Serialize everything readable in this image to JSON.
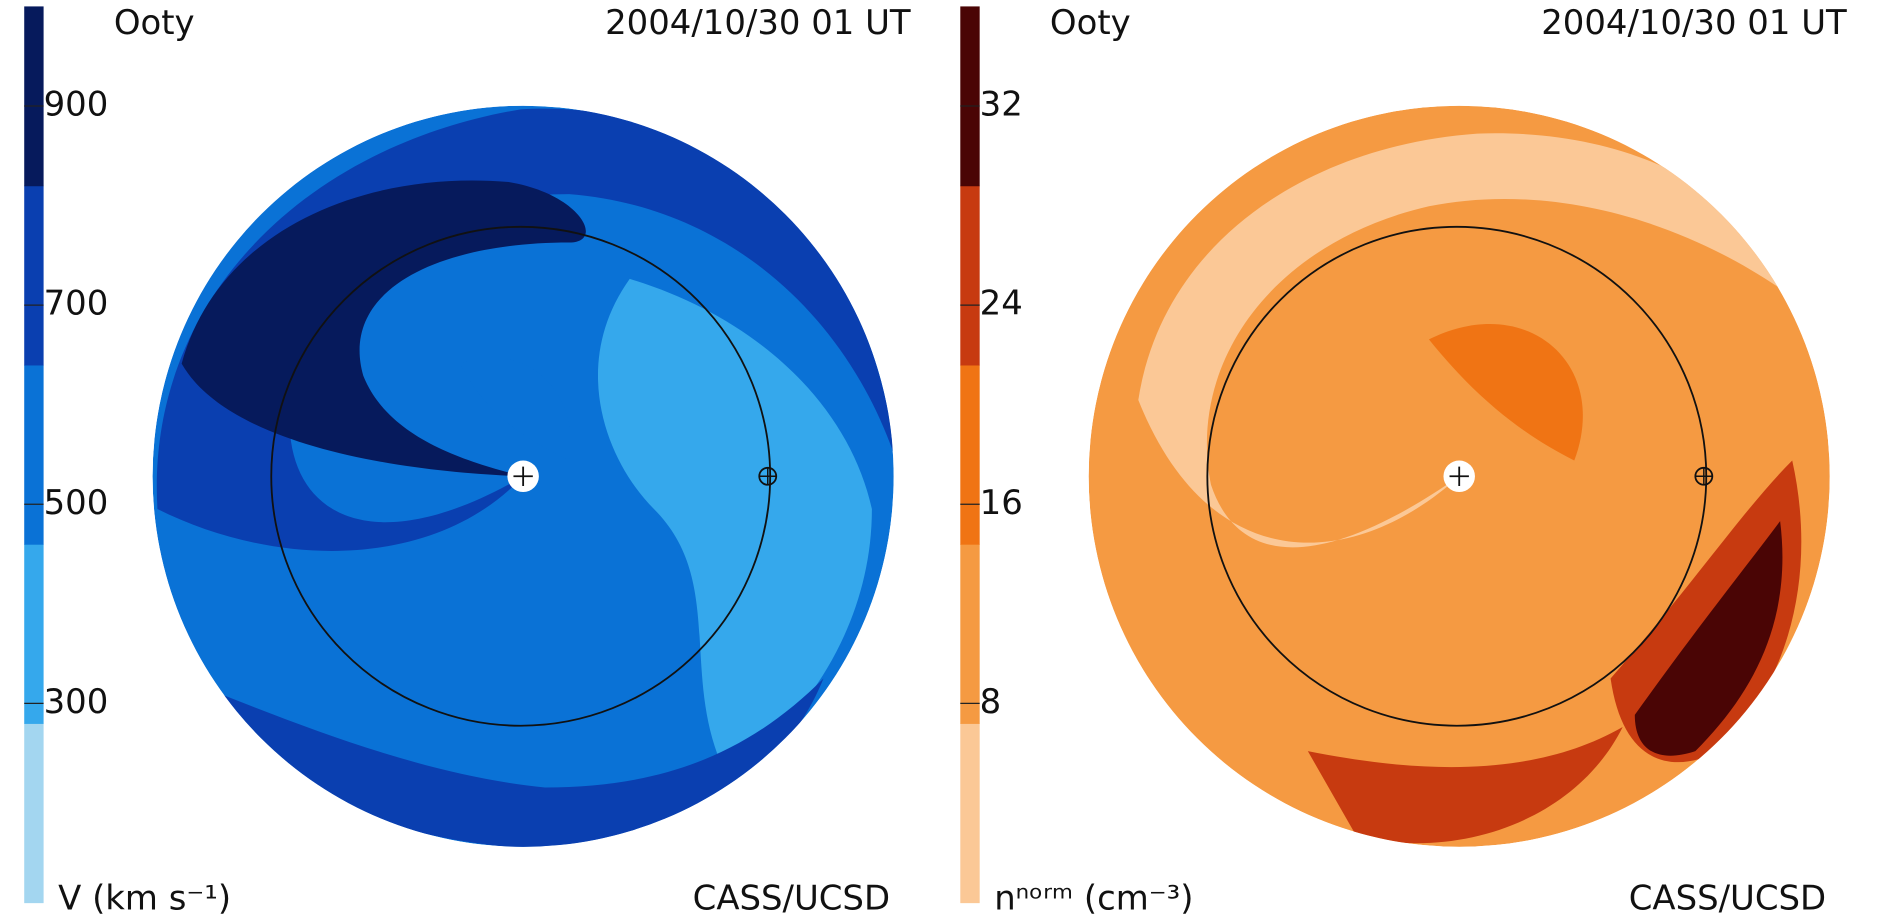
{
  "chart_data": [
    {
      "type": "colormap",
      "station": "Ooty",
      "date": "2004/10/30 01 UT",
      "credit": "CASS/UCSD",
      "colorbar_label": "V (km s⁻¹)",
      "clim": [
        100,
        1000
      ],
      "ticks": [
        300,
        500,
        700,
        900
      ],
      "colors": [
        "#a3d6f0",
        "#35a8ec",
        "#0a72d6",
        "#0a3fb0",
        "#061a5c"
      ]
    },
    {
      "type": "colormap",
      "station": "Ooty",
      "date": "2004/10/30 01 UT",
      "credit": "CASS/UCSD",
      "colorbar_label": "nⁿᵒʳᵐ (cm⁻³)",
      "clim": [
        0,
        36
      ],
      "ticks": [
        8,
        16,
        24,
        32
      ],
      "colors": [
        "#fbc896",
        "#f59a42",
        "#f07414",
        "#c73a10",
        "#4a0505"
      ]
    }
  ]
}
